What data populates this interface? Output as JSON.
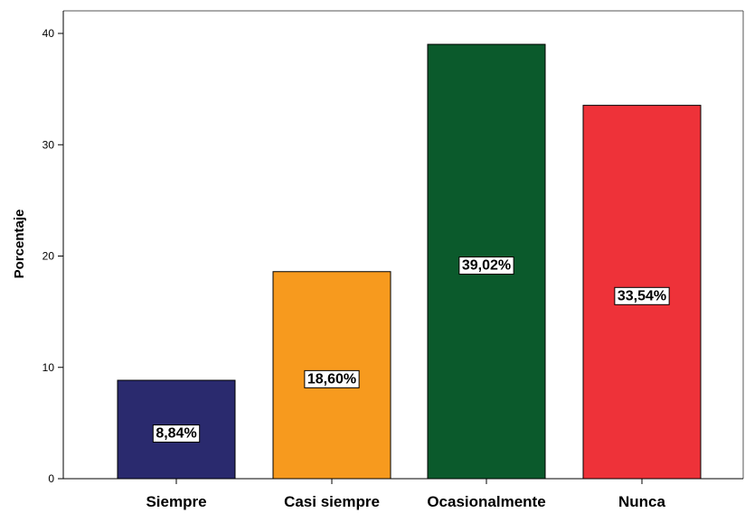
{
  "chart_data": {
    "type": "bar",
    "title": "",
    "xlabel": "",
    "ylabel": "Porcentaje",
    "ylim": [
      0,
      40
    ],
    "yticks": [
      0,
      10,
      20,
      30,
      40
    ],
    "categories": [
      "Siempre",
      "Casi siempre",
      "Ocasionalmente",
      "Nunca"
    ],
    "values": [
      8.84,
      18.6,
      39.02,
      33.54
    ],
    "data_labels": [
      "8,84%",
      "18,60%",
      "39,02%",
      "33,54%"
    ],
    "colors": [
      "#2a2a6e",
      "#f79a1e",
      "#0b5a2c",
      "#ee3239"
    ],
    "grid": false,
    "legend": "none"
  }
}
